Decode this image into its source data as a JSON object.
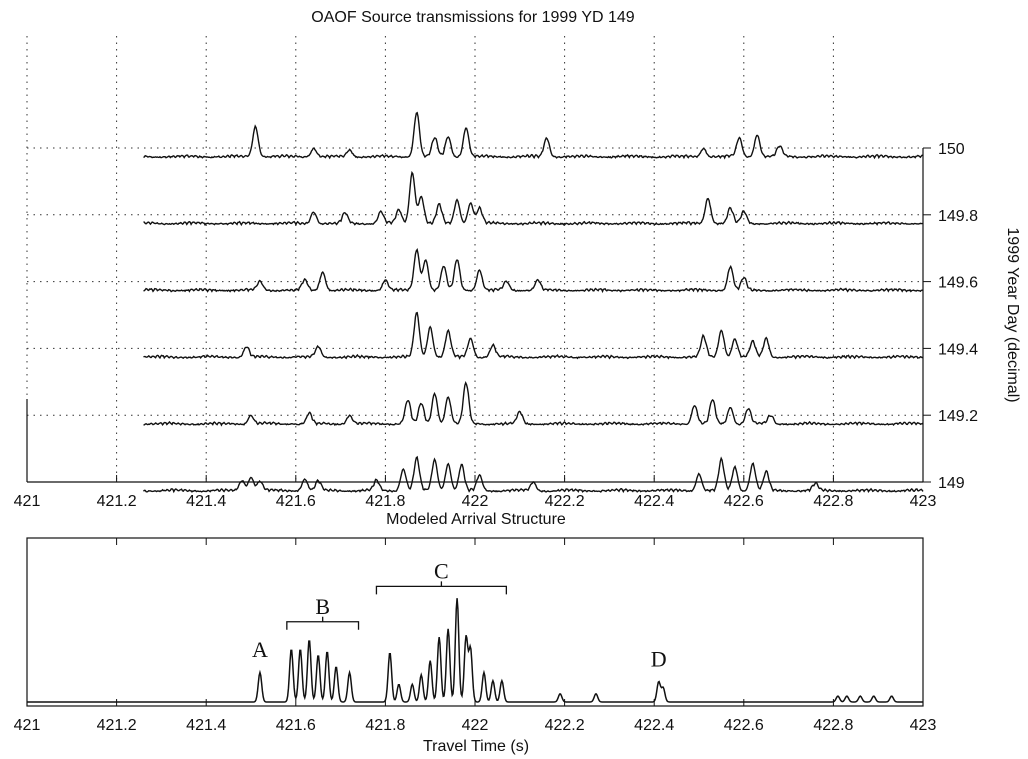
{
  "chart_data": [
    {
      "type": "line",
      "title": "OAOF Source transmissions for 1999 YD 149",
      "xlabel": "",
      "ylabel": "1999 Year Day (decimal)",
      "xlim": [
        421,
        423
      ],
      "ylim": [
        149,
        150
      ],
      "x_ticks": [
        "421",
        "421.2",
        "421.4",
        "421.6",
        "421.8",
        "422",
        "422.2",
        "422.4",
        "422.6",
        "422.8",
        "423"
      ],
      "y_ticks": [
        "149",
        "149.2",
        "149.4",
        "149.6",
        "149.8",
        "150"
      ],
      "grid": true,
      "line_color": "#111111",
      "trace_start_x": 421.26,
      "series": [
        {
          "y": 149.0,
          "peaks": [
            [
              421.48,
              0.3
            ],
            [
              421.5,
              0.4
            ],
            [
              421.52,
              0.28
            ],
            [
              421.62,
              0.35
            ],
            [
              421.65,
              0.28
            ],
            [
              421.78,
              0.3
            ],
            [
              421.84,
              0.65
            ],
            [
              421.87,
              0.95
            ],
            [
              421.91,
              0.9
            ],
            [
              421.94,
              0.8
            ],
            [
              421.97,
              0.75
            ],
            [
              422.01,
              0.45
            ],
            [
              422.13,
              0.25
            ],
            [
              422.5,
              0.5
            ],
            [
              422.55,
              0.9
            ],
            [
              422.58,
              0.7
            ],
            [
              422.62,
              0.8
            ],
            [
              422.65,
              0.55
            ],
            [
              422.76,
              0.2
            ]
          ]
        },
        {
          "y": 149.2,
          "peaks": [
            [
              421.5,
              0.25
            ],
            [
              421.63,
              0.3
            ],
            [
              421.72,
              0.25
            ],
            [
              421.85,
              0.7
            ],
            [
              421.88,
              0.6
            ],
            [
              421.91,
              0.9
            ],
            [
              421.94,
              0.8
            ],
            [
              421.98,
              1.2
            ],
            [
              422.1,
              0.35
            ],
            [
              422.49,
              0.55
            ],
            [
              422.53,
              0.7
            ],
            [
              422.57,
              0.5
            ],
            [
              422.61,
              0.45
            ],
            [
              422.66,
              0.25
            ]
          ]
        },
        {
          "y": 149.4,
          "peaks": [
            [
              421.49,
              0.3
            ],
            [
              421.65,
              0.3
            ],
            [
              421.87,
              1.3
            ],
            [
              421.9,
              0.9
            ],
            [
              421.94,
              0.75
            ],
            [
              421.99,
              0.55
            ],
            [
              422.04,
              0.35
            ],
            [
              422.51,
              0.6
            ],
            [
              422.55,
              0.8
            ],
            [
              422.58,
              0.55
            ],
            [
              422.62,
              0.45
            ],
            [
              422.65,
              0.55
            ]
          ]
        },
        {
          "y": 149.6,
          "peaks": [
            [
              421.52,
              0.25
            ],
            [
              421.62,
              0.3
            ],
            [
              421.66,
              0.55
            ],
            [
              421.8,
              0.3
            ],
            [
              421.87,
              1.2
            ],
            [
              421.89,
              0.9
            ],
            [
              421.93,
              0.7
            ],
            [
              421.96,
              0.9
            ],
            [
              422.01,
              0.6
            ],
            [
              422.07,
              0.25
            ],
            [
              422.14,
              0.3
            ],
            [
              422.57,
              0.7
            ],
            [
              422.6,
              0.35
            ]
          ]
        },
        {
          "y": 149.8,
          "peaks": [
            [
              421.64,
              0.35
            ],
            [
              421.71,
              0.3
            ],
            [
              421.79,
              0.35
            ],
            [
              421.83,
              0.4
            ],
            [
              421.86,
              1.5
            ],
            [
              421.88,
              0.8
            ],
            [
              421.92,
              0.55
            ],
            [
              421.96,
              0.7
            ],
            [
              421.99,
              0.6
            ],
            [
              422.01,
              0.45
            ],
            [
              422.52,
              0.75
            ],
            [
              422.57,
              0.45
            ],
            [
              422.6,
              0.35
            ]
          ]
        },
        {
          "y": 150.0,
          "peaks": [
            [
              421.51,
              0.9
            ],
            [
              421.64,
              0.25
            ],
            [
              421.72,
              0.2
            ],
            [
              421.87,
              1.3
            ],
            [
              421.91,
              0.55
            ],
            [
              421.94,
              0.6
            ],
            [
              421.98,
              0.85
            ],
            [
              422.16,
              0.55
            ],
            [
              422.51,
              0.25
            ],
            [
              422.59,
              0.55
            ],
            [
              422.63,
              0.65
            ],
            [
              422.68,
              0.3
            ]
          ]
        }
      ]
    },
    {
      "type": "line",
      "title": "Modeled Arrival Structure",
      "xlabel": "Travel Time (s)",
      "ylabel": "",
      "xlim": [
        421,
        423
      ],
      "x_ticks": [
        "421",
        "421.2",
        "421.4",
        "421.6",
        "421.8",
        "422",
        "422.2",
        "422.4",
        "422.6",
        "422.8",
        "423"
      ],
      "peaks": [
        [
          421.52,
          0.25
        ],
        [
          421.59,
          0.45
        ],
        [
          421.61,
          0.45
        ],
        [
          421.63,
          0.53
        ],
        [
          421.65,
          0.4
        ],
        [
          421.67,
          0.43
        ],
        [
          421.69,
          0.3
        ],
        [
          421.72,
          0.25
        ],
        [
          421.81,
          0.42
        ],
        [
          421.83,
          0.15
        ],
        [
          421.86,
          0.15
        ],
        [
          421.88,
          0.23
        ],
        [
          421.9,
          0.35
        ],
        [
          421.92,
          0.55
        ],
        [
          421.94,
          0.62
        ],
        [
          421.96,
          0.88
        ],
        [
          421.98,
          0.55
        ],
        [
          421.99,
          0.45
        ],
        [
          422.02,
          0.25
        ],
        [
          422.04,
          0.18
        ],
        [
          422.06,
          0.18
        ],
        [
          422.19,
          0.07
        ],
        [
          422.27,
          0.07
        ],
        [
          422.41,
          0.17
        ],
        [
          422.42,
          0.12
        ],
        [
          422.81,
          0.05
        ],
        [
          422.83,
          0.05
        ],
        [
          422.86,
          0.05
        ],
        [
          422.89,
          0.05
        ],
        [
          422.93,
          0.05
        ]
      ],
      "brackets": [
        {
          "label": "A",
          "x1": null,
          "x2": null,
          "xc": 421.52,
          "label_level": 0.38
        },
        {
          "label": "B",
          "x1": 421.58,
          "x2": 421.74,
          "xc": 421.66,
          "label_level": 0.68
        },
        {
          "label": "C",
          "x1": 421.78,
          "x2": 422.07,
          "xc": 421.925,
          "label_level": 0.98
        },
        {
          "label": "D",
          "x1": null,
          "x2": null,
          "xc": 422.41,
          "label_level": 0.3
        }
      ]
    }
  ]
}
